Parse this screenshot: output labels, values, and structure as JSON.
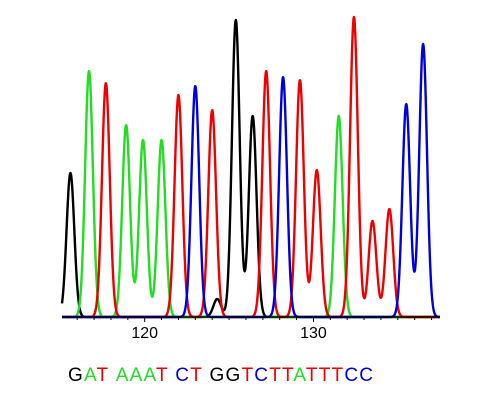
{
  "chart_data": {
    "type": "line",
    "title": "",
    "xlabel": "",
    "ylabel": "",
    "x_ticks": [
      120,
      130
    ],
    "xlim": [
      115.1,
      137.5
    ],
    "ylim": [
      0,
      1.0
    ],
    "grid": false,
    "legend": "none",
    "colors": {
      "A": "#22dd22",
      "C": "#0000dd",
      "G": "#000000",
      "T": "#ee0000"
    },
    "series": [
      {
        "base": "G",
        "color": "#000000",
        "peaks": [
          {
            "x": 115.6,
            "y": 0.48
          },
          {
            "x": 124.3,
            "y": 0.06
          },
          {
            "x": 125.4,
            "y": 0.99
          },
          {
            "x": 126.4,
            "y": 0.67
          }
        ]
      },
      {
        "base": "A",
        "color": "#22dd22",
        "peaks": [
          {
            "x": 116.7,
            "y": 0.82
          },
          {
            "x": 118.9,
            "y": 0.64
          },
          {
            "x": 119.9,
            "y": 0.59
          },
          {
            "x": 121.0,
            "y": 0.59
          },
          {
            "x": 131.5,
            "y": 0.67
          }
        ]
      },
      {
        "base": "T",
        "color": "#ee0000",
        "peaks": [
          {
            "x": 117.7,
            "y": 0.78
          },
          {
            "x": 122.0,
            "y": 0.74
          },
          {
            "x": 124.0,
            "y": 0.69
          },
          {
            "x": 127.2,
            "y": 0.82
          },
          {
            "x": 129.2,
            "y": 0.79
          },
          {
            "x": 130.2,
            "y": 0.49
          },
          {
            "x": 132.4,
            "y": 1.0
          },
          {
            "x": 133.5,
            "y": 0.32
          },
          {
            "x": 134.5,
            "y": 0.36
          }
        ]
      },
      {
        "base": "C",
        "color": "#0000dd",
        "peaks": [
          {
            "x": 123.0,
            "y": 0.77
          },
          {
            "x": 128.2,
            "y": 0.8
          },
          {
            "x": 135.5,
            "y": 0.71
          },
          {
            "x": 136.5,
            "y": 0.91
          }
        ]
      }
    ],
    "called_bases": [
      {
        "char": "G",
        "base": "G"
      },
      {
        "char": "A",
        "base": "A"
      },
      {
        "char": "T",
        "base": "T"
      },
      {
        "char": " ",
        "base": ""
      },
      {
        "char": "A",
        "base": "A"
      },
      {
        "char": "A",
        "base": "A"
      },
      {
        "char": "A",
        "base": "A"
      },
      {
        "char": "T",
        "base": "T"
      },
      {
        "char": " ",
        "base": ""
      },
      {
        "char": "C",
        "base": "C"
      },
      {
        "char": "T",
        "base": "T"
      },
      {
        "char": " ",
        "base": ""
      },
      {
        "char": "G",
        "base": "G"
      },
      {
        "char": "G",
        "base": "G"
      },
      {
        "char": "T",
        "base": "T"
      },
      {
        "char": "C",
        "base": "C"
      },
      {
        "char": "T",
        "base": "T"
      },
      {
        "char": "T",
        "base": "T"
      },
      {
        "char": "A",
        "base": "A"
      },
      {
        "char": "T",
        "base": "T"
      },
      {
        "char": "T",
        "base": "T"
      },
      {
        "char": "T",
        "base": "T"
      },
      {
        "char": "C",
        "base": "C"
      },
      {
        "char": "C",
        "base": "C"
      }
    ]
  }
}
